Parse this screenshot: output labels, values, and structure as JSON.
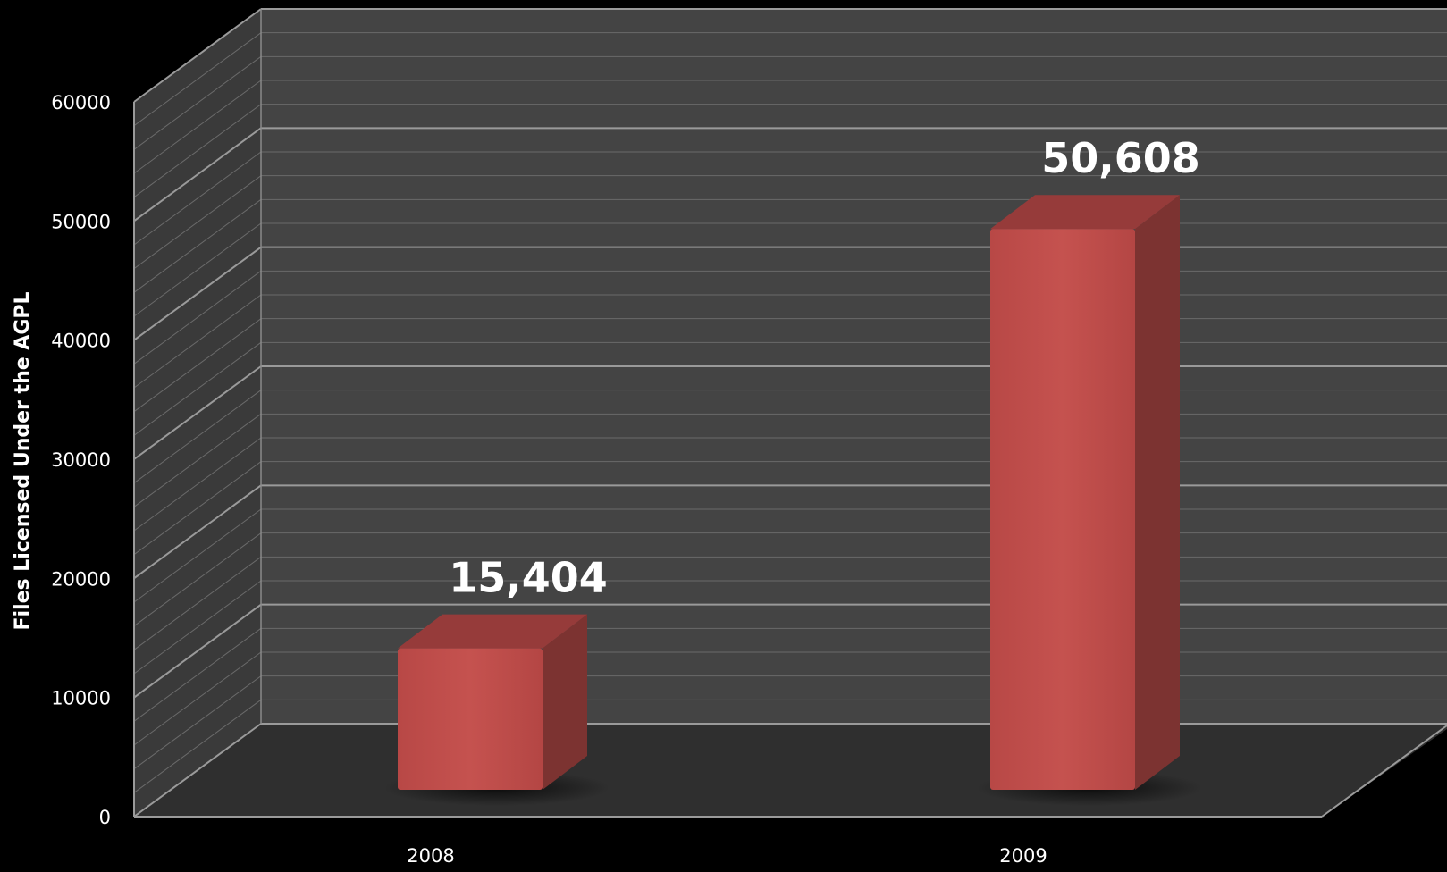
{
  "chart_data": {
    "type": "bar",
    "categories": [
      "2008",
      "2009"
    ],
    "values": [
      15404,
      50608
    ],
    "data_labels": [
      "15,404",
      "50,608"
    ],
    "ylabel": "Files Licensed Under the AGPL",
    "xlabel": "",
    "title": "",
    "ylim": [
      0,
      60000
    ],
    "yticks": [
      "0",
      "10000",
      "20000",
      "30000",
      "40000",
      "50000",
      "60000"
    ],
    "grid": true,
    "style": "3d",
    "colors": {
      "background": "#000000",
      "wall": "#444444",
      "floor": "#2f2f2f",
      "bar_front": "#c2504e",
      "bar_top": "#963b3a",
      "bar_side": "#7c3331",
      "gridline": "#8a8a8a",
      "text": "#ffffff"
    }
  }
}
